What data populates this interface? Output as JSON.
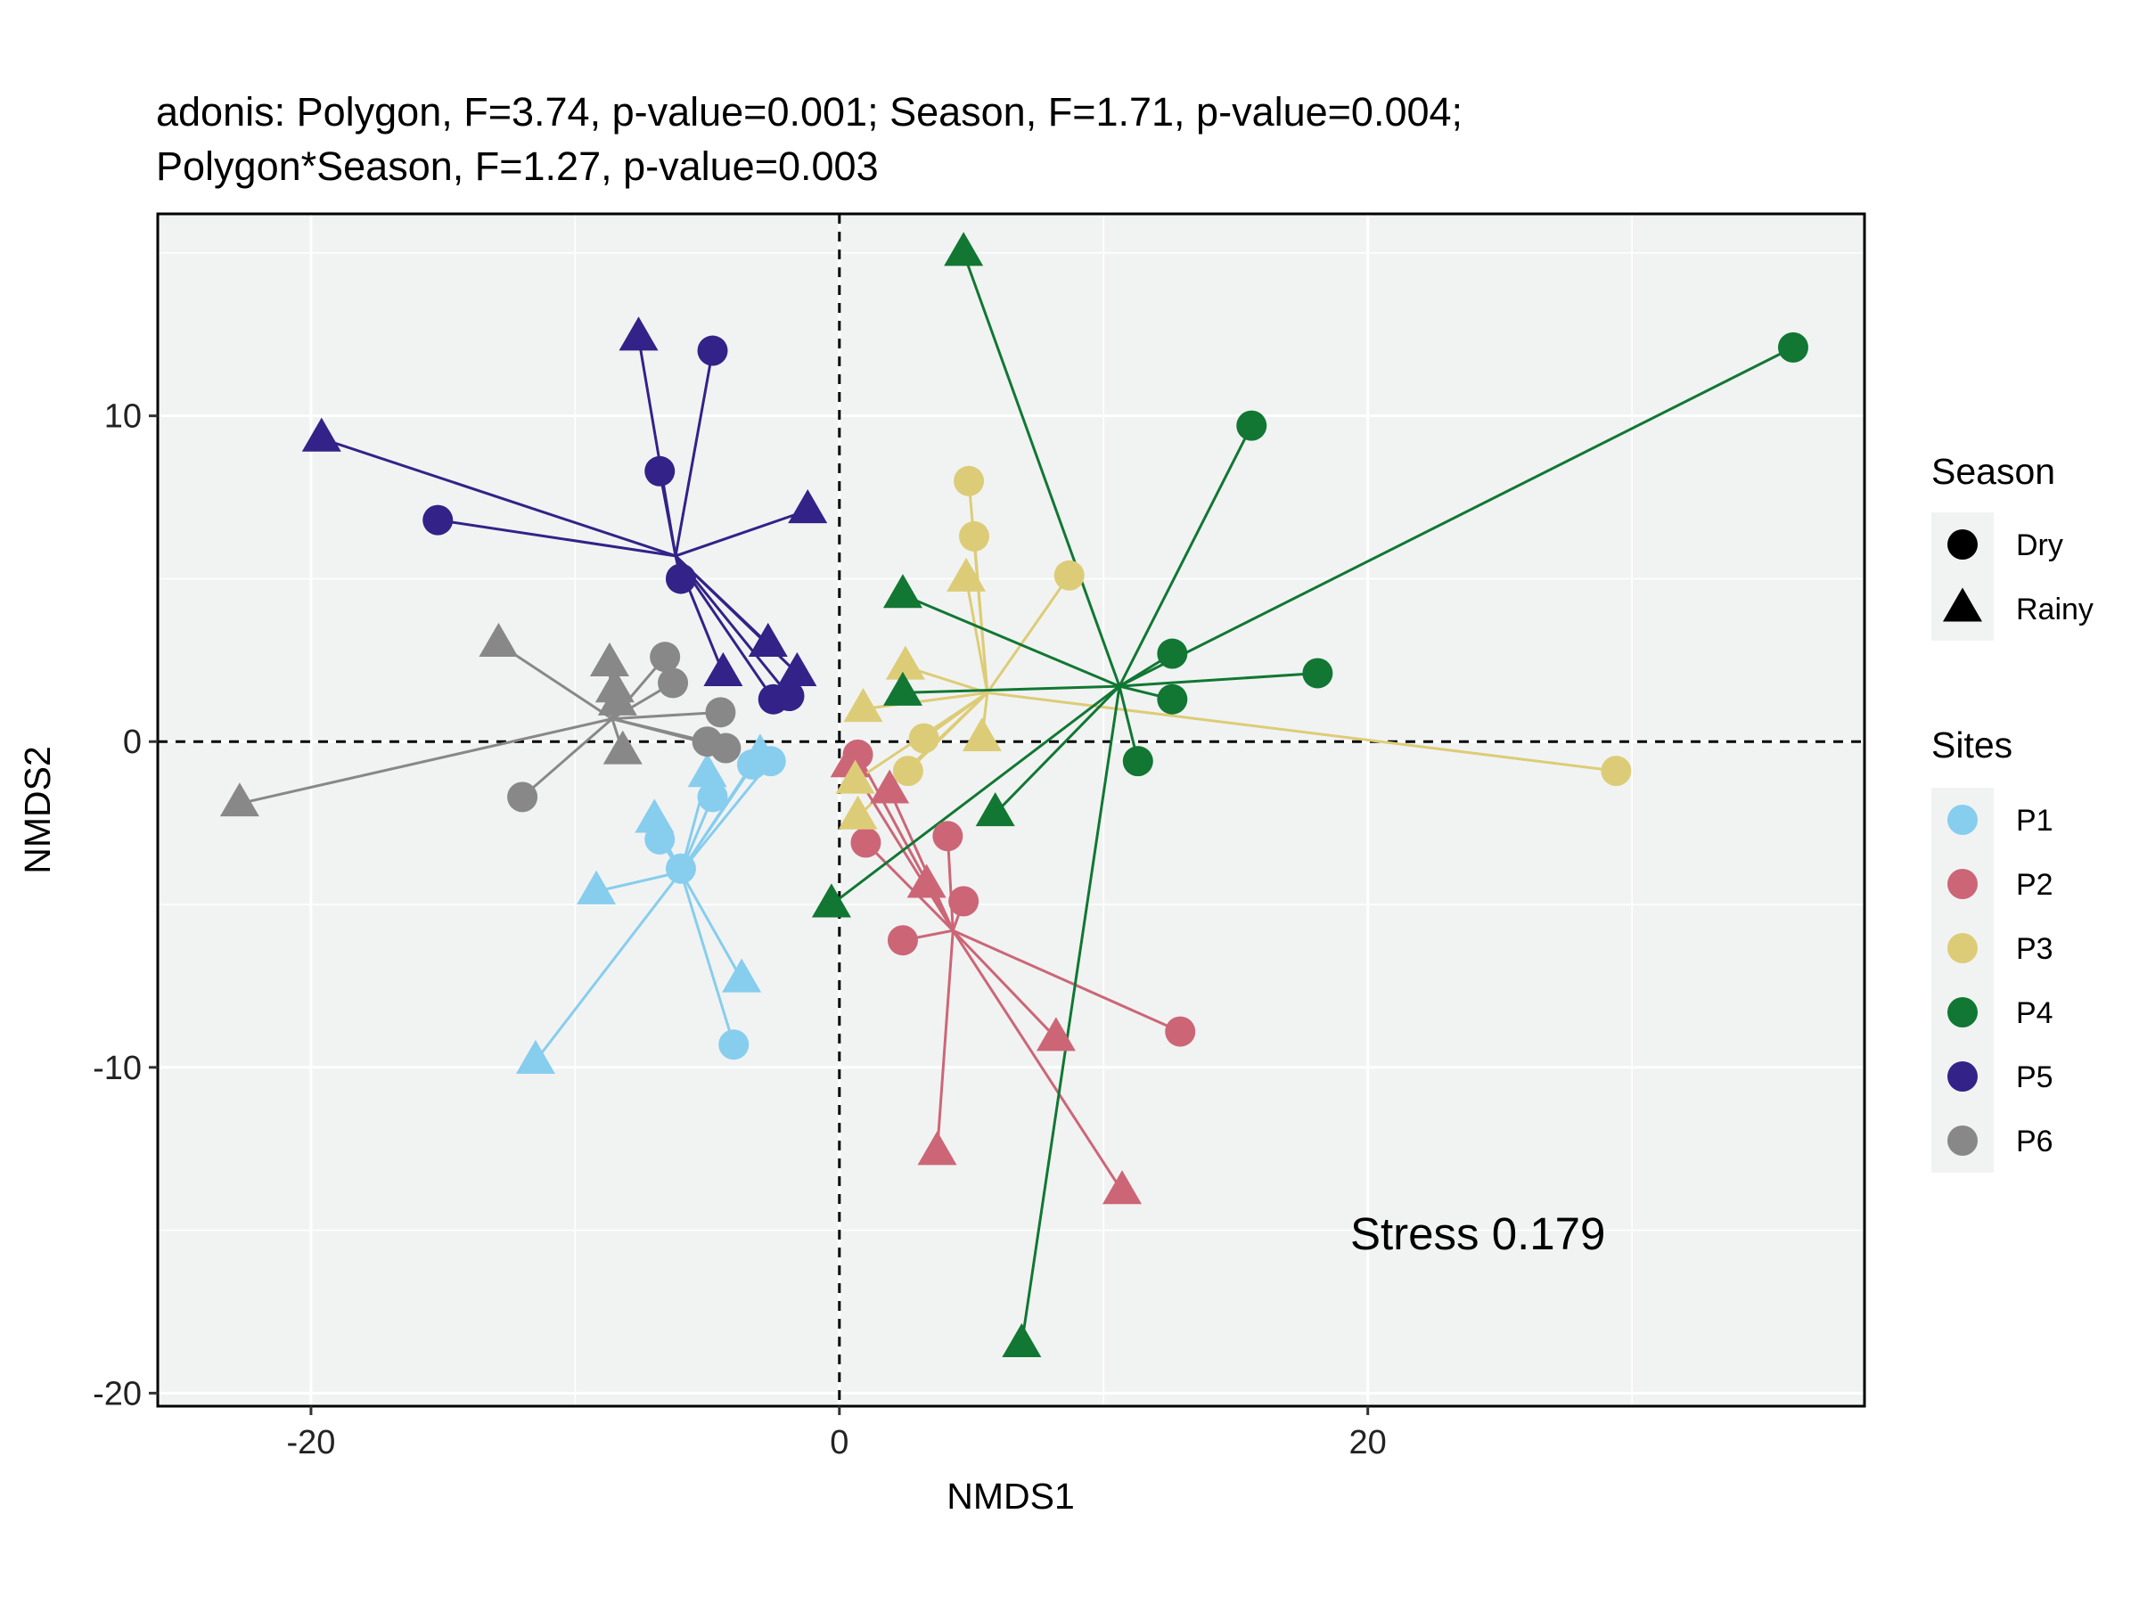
{
  "chart_data": {
    "type": "scatter",
    "title_lines": [
      "adonis: Polygon, F=3.74, p-value=0.001; Season, F=1.71, p-value=0.004;",
      "Polygon*Season, F=1.27, p-value=0.003"
    ],
    "xlabel": "NMDS1",
    "ylabel": "NMDS2",
    "xlim": [
      -25.8,
      38.8
    ],
    "ylim": [
      -20.4,
      16.2
    ],
    "xticks": [
      -20,
      0,
      20
    ],
    "yticks": [
      -20,
      -10,
      0,
      10
    ],
    "xtick_labels": [
      "-20",
      "0",
      "20"
    ],
    "ytick_labels": [
      "-20",
      "-10",
      "0",
      "10"
    ],
    "grid": true,
    "panel_background": "#f1f3f2",
    "grid_color": "#ffffff",
    "reference_lines": {
      "x": 0,
      "y": 0,
      "style": "dashed"
    },
    "annotation": "Stress 0.179",
    "legend_placement": "right",
    "legends": [
      {
        "title": "Season",
        "entries": [
          {
            "label": "Dry",
            "shape": "circle"
          },
          {
            "label": "Rainy",
            "shape": "triangle"
          }
        ]
      },
      {
        "title": "Sites",
        "entries": [
          {
            "label": "P1",
            "color": "#87cdee"
          },
          {
            "label": "P2",
            "color": "#cc6677"
          },
          {
            "label": "P3",
            "color": "#ddcc77"
          },
          {
            "label": "P4",
            "color": "#117733"
          },
          {
            "label": "P5",
            "color": "#332288"
          },
          {
            "label": "P6",
            "color": "#888888"
          }
        ]
      }
    ],
    "series": [
      {
        "name": "P1",
        "color": "#87cdee",
        "centroid": [
          -6.0,
          -4.0
        ],
        "points": [
          {
            "x": -2.6,
            "y": -0.6,
            "season": "Dry"
          },
          {
            "x": -4.8,
            "y": -1.7,
            "season": "Dry"
          },
          {
            "x": -3.3,
            "y": -0.7,
            "season": "Dry"
          },
          {
            "x": -6.8,
            "y": -3.0,
            "season": "Dry"
          },
          {
            "x": -6.0,
            "y": -3.9,
            "season": "Dry"
          },
          {
            "x": -4.0,
            "y": -9.3,
            "season": "Dry"
          },
          {
            "x": -5.0,
            "y": -1.0,
            "season": "Rainy"
          },
          {
            "x": -3.0,
            "y": -0.4,
            "season": "Rainy"
          },
          {
            "x": -7.0,
            "y": -2.4,
            "season": "Rainy"
          },
          {
            "x": -9.2,
            "y": -4.6,
            "season": "Rainy"
          },
          {
            "x": -3.7,
            "y": -7.3,
            "season": "Rainy"
          },
          {
            "x": -11.5,
            "y": -9.8,
            "season": "Rainy"
          }
        ]
      },
      {
        "name": "P2",
        "color": "#cc6677",
        "centroid": [
          4.3,
          -5.8
        ],
        "points": [
          {
            "x": 0.7,
            "y": -0.4,
            "season": "Dry"
          },
          {
            "x": 1.0,
            "y": -3.1,
            "season": "Dry"
          },
          {
            "x": 4.1,
            "y": -2.9,
            "season": "Dry"
          },
          {
            "x": 4.7,
            "y": -4.9,
            "season": "Dry"
          },
          {
            "x": 2.4,
            "y": -6.1,
            "season": "Dry"
          },
          {
            "x": 12.9,
            "y": -8.9,
            "season": "Dry"
          },
          {
            "x": 0.4,
            "y": -0.7,
            "season": "Rainy"
          },
          {
            "x": 1.9,
            "y": -1.5,
            "season": "Rainy"
          },
          {
            "x": 3.3,
            "y": -4.4,
            "season": "Rainy"
          },
          {
            "x": 8.2,
            "y": -9.1,
            "season": "Rainy"
          },
          {
            "x": 3.7,
            "y": -12.6,
            "season": "Rainy"
          },
          {
            "x": 10.7,
            "y": -13.8,
            "season": "Rainy"
          }
        ]
      },
      {
        "name": "P3",
        "color": "#ddcc77",
        "centroid": [
          5.6,
          1.5
        ],
        "points": [
          {
            "x": 4.9,
            "y": 8.0,
            "season": "Dry"
          },
          {
            "x": 5.1,
            "y": 6.3,
            "season": "Dry"
          },
          {
            "x": 8.7,
            "y": 5.1,
            "season": "Dry"
          },
          {
            "x": 3.2,
            "y": 0.1,
            "season": "Dry"
          },
          {
            "x": 2.6,
            "y": -0.9,
            "season": "Dry"
          },
          {
            "x": 29.4,
            "y": -0.9,
            "season": "Dry"
          },
          {
            "x": 4.8,
            "y": 5.0,
            "season": "Rainy"
          },
          {
            "x": 2.5,
            "y": 2.3,
            "season": "Rainy"
          },
          {
            "x": 0.9,
            "y": 1.0,
            "season": "Rainy"
          },
          {
            "x": 5.4,
            "y": 0.1,
            "season": "Rainy"
          },
          {
            "x": 0.6,
            "y": -1.2,
            "season": "Rainy"
          },
          {
            "x": 0.7,
            "y": -2.3,
            "season": "Rainy"
          }
        ]
      },
      {
        "name": "P4",
        "color": "#117733",
        "centroid": [
          10.6,
          1.7
        ],
        "points": [
          {
            "x": 36.1,
            "y": 12.1,
            "season": "Dry"
          },
          {
            "x": 15.6,
            "y": 9.7,
            "season": "Dry"
          },
          {
            "x": 12.6,
            "y": 2.7,
            "season": "Dry"
          },
          {
            "x": 18.1,
            "y": 2.1,
            "season": "Dry"
          },
          {
            "x": 12.6,
            "y": 1.3,
            "season": "Dry"
          },
          {
            "x": 11.3,
            "y": -0.6,
            "season": "Dry"
          },
          {
            "x": 4.7,
            "y": 15.0,
            "season": "Rainy"
          },
          {
            "x": 2.4,
            "y": 4.5,
            "season": "Rainy"
          },
          {
            "x": 2.4,
            "y": 1.5,
            "season": "Rainy"
          },
          {
            "x": 5.9,
            "y": -2.2,
            "season": "Rainy"
          },
          {
            "x": -0.3,
            "y": -5.0,
            "season": "Rainy"
          },
          {
            "x": 6.9,
            "y": -18.5,
            "season": "Rainy"
          }
        ]
      },
      {
        "name": "P5",
        "color": "#332288",
        "centroid": [
          -6.2,
          5.7
        ],
        "points": [
          {
            "x": -4.8,
            "y": 12.0,
            "season": "Dry"
          },
          {
            "x": -6.8,
            "y": 8.3,
            "season": "Dry"
          },
          {
            "x": -15.2,
            "y": 6.8,
            "season": "Dry"
          },
          {
            "x": -6.0,
            "y": 5.0,
            "season": "Dry"
          },
          {
            "x": -1.9,
            "y": 1.4,
            "season": "Dry"
          },
          {
            "x": -2.5,
            "y": 1.3,
            "season": "Dry"
          },
          {
            "x": -7.6,
            "y": 12.4,
            "season": "Rainy"
          },
          {
            "x": -19.6,
            "y": 9.3,
            "season": "Rainy"
          },
          {
            "x": -1.2,
            "y": 7.1,
            "season": "Rainy"
          },
          {
            "x": -2.7,
            "y": 3.0,
            "season": "Rainy"
          },
          {
            "x": -4.4,
            "y": 2.1,
            "season": "Rainy"
          },
          {
            "x": -1.6,
            "y": 2.1,
            "season": "Rainy"
          }
        ]
      },
      {
        "name": "P6",
        "color": "#888888",
        "centroid": [
          -8.6,
          0.7
        ],
        "points": [
          {
            "x": -6.6,
            "y": 2.6,
            "season": "Dry"
          },
          {
            "x": -6.3,
            "y": 1.8,
            "season": "Dry"
          },
          {
            "x": -4.5,
            "y": 0.9,
            "season": "Dry"
          },
          {
            "x": -5.0,
            "y": 0.0,
            "season": "Dry"
          },
          {
            "x": -4.3,
            "y": -0.2,
            "season": "Dry"
          },
          {
            "x": -12.0,
            "y": -1.7,
            "season": "Dry"
          },
          {
            "x": -12.9,
            "y": 3.0,
            "season": "Rainy"
          },
          {
            "x": -8.7,
            "y": 2.4,
            "season": "Rainy"
          },
          {
            "x": -8.5,
            "y": 1.6,
            "season": "Rainy"
          },
          {
            "x": -8.4,
            "y": 1.2,
            "season": "Rainy"
          },
          {
            "x": -8.2,
            "y": -0.3,
            "season": "Rainy"
          },
          {
            "x": -22.7,
            "y": -1.9,
            "season": "Rainy"
          }
        ]
      }
    ]
  }
}
